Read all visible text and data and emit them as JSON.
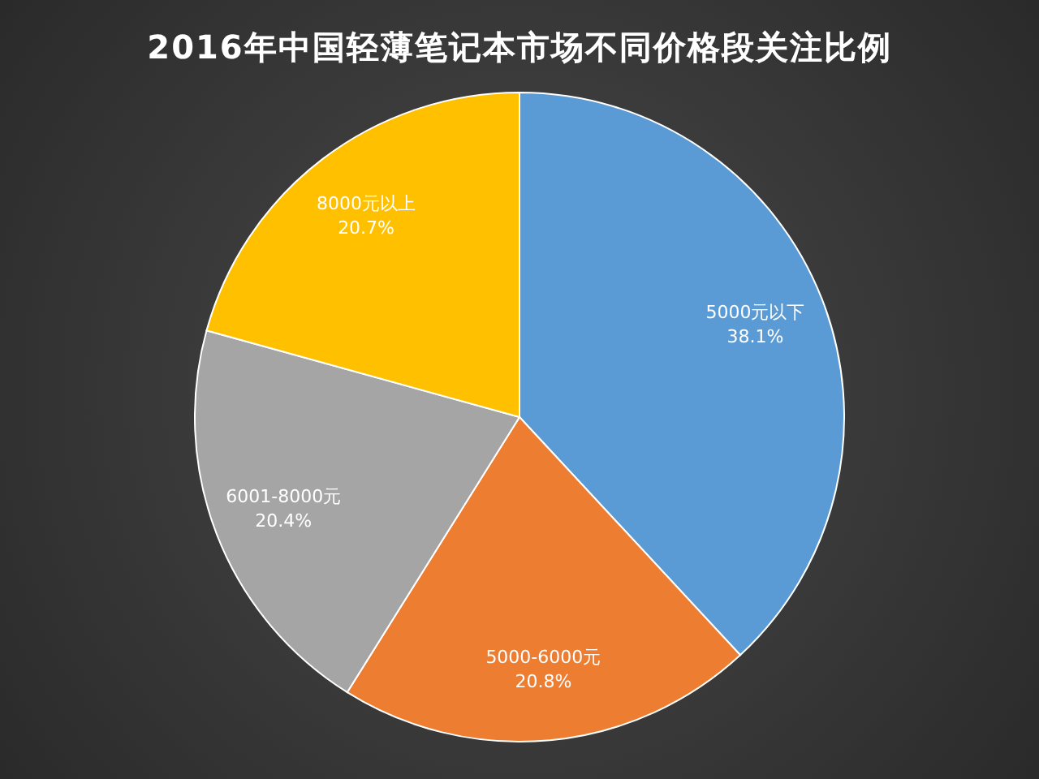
{
  "chart_data": {
    "type": "pie",
    "title": "2016年中国轻薄笔记本市场不同价格段关注比例",
    "categories": [
      "5000元以下",
      "5000-6000元",
      "6001-8000元",
      "8000元以上"
    ],
    "values": [
      38.1,
      20.8,
      20.4,
      20.7
    ],
    "colors": [
      "#5b9bd5",
      "#ed7d31",
      "#a5a5a5",
      "#ffc000"
    ],
    "value_labels": [
      "38.1%",
      "20.8%",
      "20.4%",
      "20.7%"
    ]
  }
}
